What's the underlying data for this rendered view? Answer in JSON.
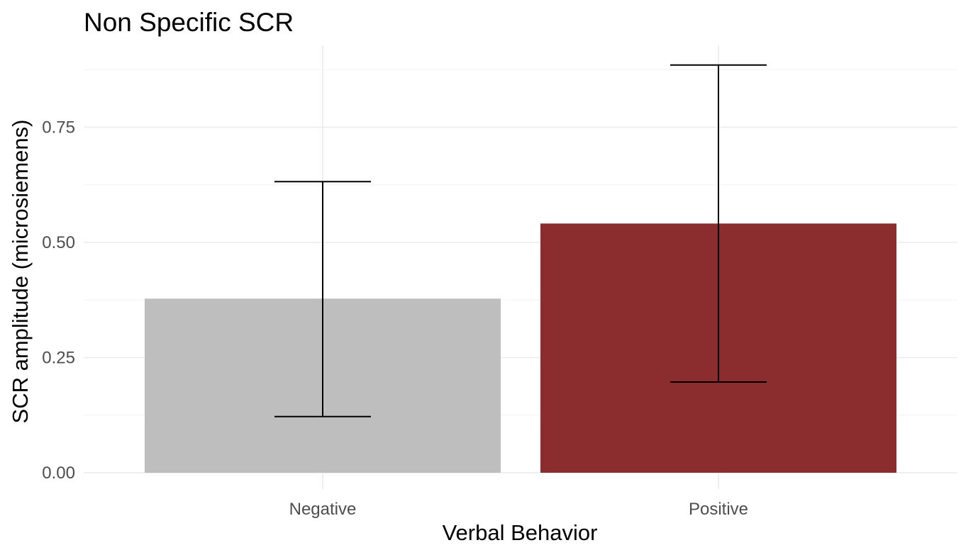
{
  "chart_data": {
    "type": "bar",
    "title": "Non Specific SCR",
    "xlabel": "Verbal Behavior",
    "ylabel": "SCR amplitude (microsiemens)",
    "categories": [
      "Negative",
      "Positive"
    ],
    "values": [
      0.378,
      0.541
    ],
    "error_lower": [
      0.122,
      0.197
    ],
    "error_upper": [
      0.632,
      0.885
    ],
    "colors": [
      "#bebebe",
      "#8b2c2f"
    ],
    "ylim": [
      0,
      0.93
    ],
    "yticks": [
      0,
      0.25,
      0.5,
      0.75
    ],
    "ytick_labels": [
      "0.00",
      "0.25",
      "0.50",
      "0.75"
    ],
    "grid": true,
    "legend": "none"
  }
}
